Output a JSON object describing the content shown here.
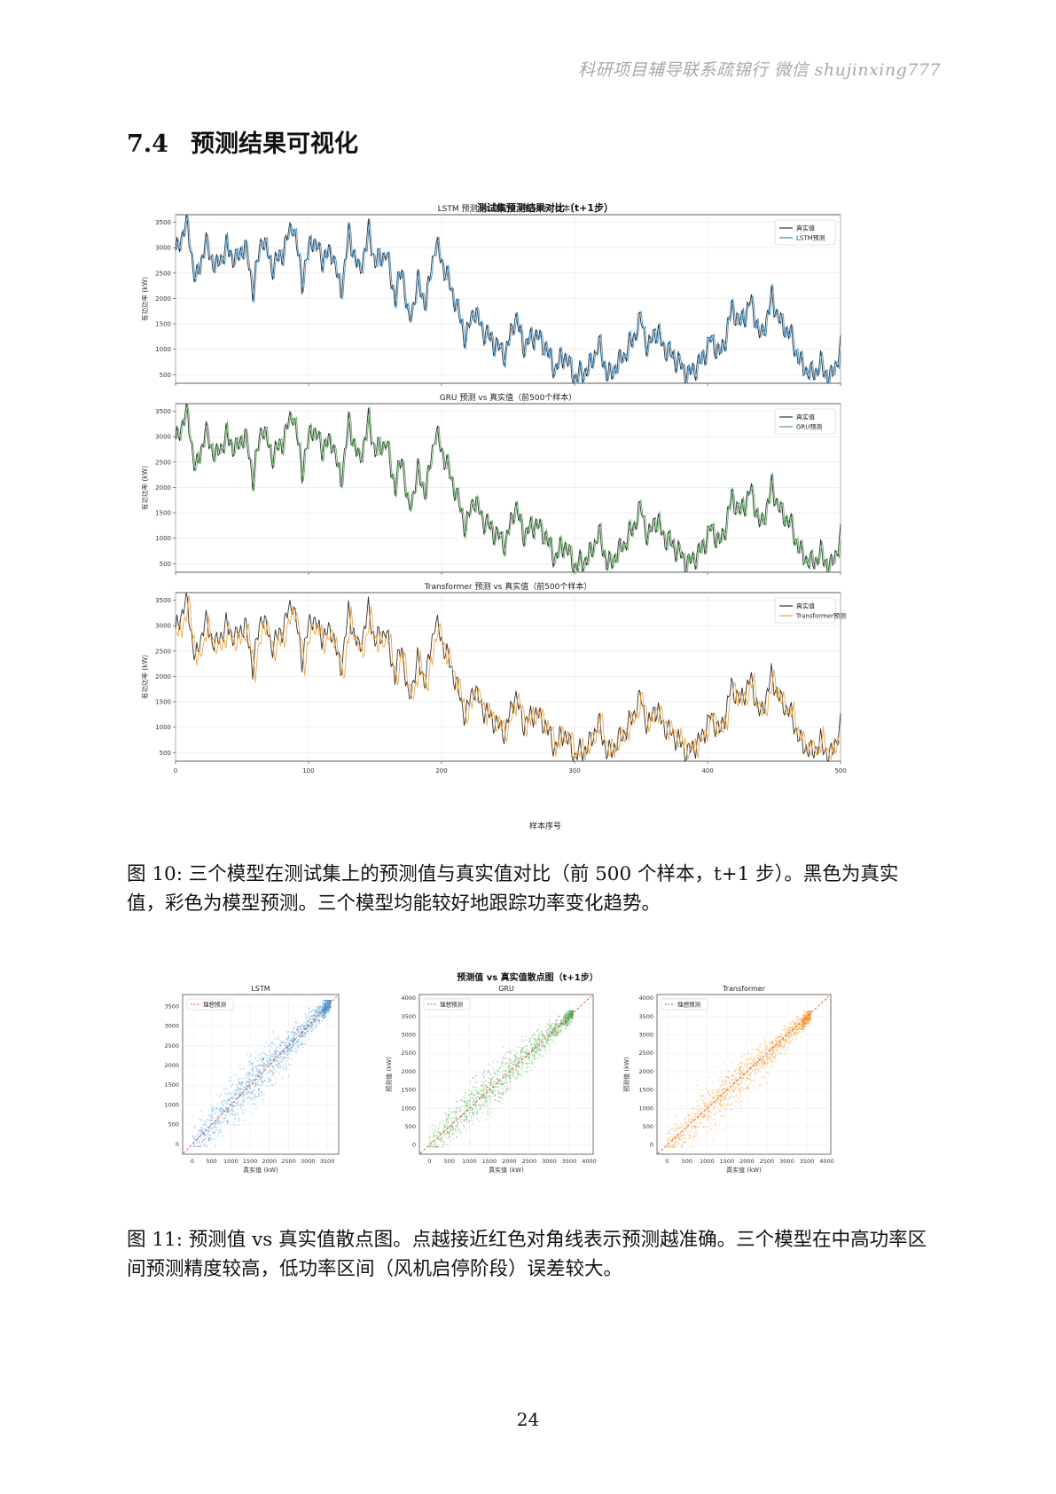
{
  "watermark": "科研项目辅导联系疏锦行 微信 shujinxing777",
  "section": {
    "number": "7.4",
    "title": "预测结果可视化"
  },
  "figure10": {
    "suptitle": "测试集预测结果对比（t+1步）",
    "xlabel": "样本序号",
    "ylabel": "有功功率 (kW)",
    "caption": "图 10: 三个模型在测试集上的预测值与真实值对比（前 500 个样本，t+1 步）。黑色为真实值，彩色为模型预测。三个模型均能较好地跟踪功率变化趋势。"
  },
  "figure11": {
    "suptitle": "预测值 vs 真实值散点图（t+1步）",
    "xlabel": "真实值 (kW)",
    "ylabel": "预测值 (kW)",
    "legend_label": "理想预测",
    "caption": "图 11: 预测值 vs 真实值散点图。点越接近红色对角线表示预测越准确。三个模型在中高功率区间预测精度较高，低功率区间（风机启停阶段）误差较大。"
  },
  "page_number": "24",
  "chart_data": [
    {
      "type": "line",
      "title": "LSTM 预测 vs 真实值（前500个样本）",
      "xlabel": "",
      "ylabel": "有功功率 (kW)",
      "xlim": [
        0,
        500
      ],
      "ylim": [
        330,
        3650
      ],
      "yticks": [
        500,
        1000,
        1500,
        2000,
        2500,
        3000,
        3500
      ],
      "xticks": [
        0,
        100,
        200,
        300,
        400,
        500
      ],
      "grid": true,
      "legend": "top-right",
      "series": [
        {
          "name": "真实值",
          "color": "#333333"
        },
        {
          "name": "LSTM预测",
          "color": "#3b8fc8"
        }
      ],
      "true_anchors": [
        [
          0,
          2850
        ],
        [
          8,
          3550
        ],
        [
          15,
          2300
        ],
        [
          22,
          3100
        ],
        [
          30,
          2600
        ],
        [
          38,
          3000
        ],
        [
          45,
          2750
        ],
        [
          52,
          3050
        ],
        [
          58,
          2200
        ],
        [
          65,
          3250
        ],
        [
          72,
          2600
        ],
        [
          80,
          2900
        ],
        [
          88,
          3500
        ],
        [
          95,
          2350
        ],
        [
          102,
          3200
        ],
        [
          110,
          2800
        ],
        [
          118,
          2900
        ],
        [
          124,
          2100
        ],
        [
          130,
          3250
        ],
        [
          138,
          2500
        ],
        [
          145,
          3300
        ],
        [
          150,
          2700
        ],
        [
          158,
          2900
        ],
        [
          165,
          2000
        ],
        [
          170,
          2650
        ],
        [
          175,
          1500
        ],
        [
          182,
          2300
        ],
        [
          188,
          1900
        ],
        [
          195,
          3100
        ],
        [
          203,
          2500
        ],
        [
          210,
          1950
        ],
        [
          218,
          1200
        ],
        [
          224,
          1800
        ],
        [
          230,
          1400
        ],
        [
          240,
          1100
        ],
        [
          248,
          900
        ],
        [
          255,
          1650
        ],
        [
          262,
          1050
        ],
        [
          270,
          1300
        ],
        [
          278,
          1050
        ],
        [
          285,
          600
        ],
        [
          292,
          900
        ],
        [
          300,
          450
        ],
        [
          310,
          600
        ],
        [
          318,
          1100
        ],
        [
          325,
          450
        ],
        [
          332,
          700
        ],
        [
          340,
          1000
        ],
        [
          350,
          1600
        ],
        [
          355,
          950
        ],
        [
          360,
          1400
        ],
        [
          368,
          1000
        ],
        [
          376,
          800
        ],
        [
          385,
          500
        ],
        [
          395,
          750
        ],
        [
          402,
          1200
        ],
        [
          410,
          900
        ],
        [
          418,
          1800
        ],
        [
          425,
          1500
        ],
        [
          432,
          1950
        ],
        [
          440,
          1200
        ],
        [
          448,
          2000
        ],
        [
          455,
          1500
        ],
        [
          462,
          1300
        ],
        [
          470,
          700
        ],
        [
          478,
          500
        ],
        [
          485,
          700
        ],
        [
          492,
          400
        ],
        [
          500,
          1000
        ]
      ],
      "pred_offset": {
        "lag": 1,
        "bias": 1.0
      }
    },
    {
      "type": "line",
      "title": "GRU 预测 vs 真实值（前500个样本）",
      "xlabel": "",
      "ylabel": "有功功率 (kW)",
      "xlim": [
        0,
        500
      ],
      "ylim": [
        330,
        3650
      ],
      "yticks": [
        500,
        1000,
        1500,
        2000,
        2500,
        3000,
        3500
      ],
      "xticks": [
        0,
        100,
        200,
        300,
        400,
        500
      ],
      "grid": true,
      "legend": "top-right",
      "series": [
        {
          "name": "真实值",
          "color": "#333333"
        },
        {
          "name": "GRU预测",
          "color": "#5aaa5a"
        }
      ],
      "pred_offset": {
        "lag": 1,
        "bias": 1.0
      }
    },
    {
      "type": "line",
      "title": "Transformer 预测 vs 真实值（前500个样本）",
      "xlabel": "样本序号",
      "ylabel": "有功功率 (kW)",
      "xlim": [
        0,
        500
      ],
      "ylim": [
        330,
        3650
      ],
      "yticks": [
        500,
        1000,
        1500,
        2000,
        2500,
        3000,
        3500
      ],
      "xticks": [
        0,
        100,
        200,
        300,
        400,
        500
      ],
      "grid": true,
      "legend": "top-right",
      "series": [
        {
          "name": "真实值",
          "color": "#333333"
        },
        {
          "name": "Transformer预测",
          "color": "#f2a13a"
        }
      ],
      "pred_offset": {
        "lag": 2,
        "bias": 0.94
      }
    },
    {
      "type": "scatter",
      "title": "LSTM",
      "xlabel": "真实值 (kW)",
      "ylabel": "预测值 (kW)",
      "xlim": [
        -250,
        3800
      ],
      "ylim": [
        -250,
        3800
      ],
      "xticks": [
        0,
        500,
        1000,
        1500,
        2000,
        2500,
        3000,
        3500
      ],
      "yticks": [
        0,
        500,
        1000,
        1500,
        2000,
        2500,
        3000,
        3500
      ],
      "color": "#3b8fd8",
      "legend": "top-left",
      "grid": true,
      "ideal_line": {
        "name": "理想预测",
        "color": "#e0542a"
      }
    },
    {
      "type": "scatter",
      "title": "GRU",
      "xlabel": "真实值 (kW)",
      "ylabel": "预测值 (kW)",
      "xlim": [
        -250,
        4100
      ],
      "ylim": [
        -250,
        4100
      ],
      "xticks": [
        0,
        500,
        1000,
        1500,
        2000,
        2500,
        3000,
        3500,
        4000
      ],
      "yticks": [
        0,
        500,
        1000,
        1500,
        2000,
        2500,
        3000,
        3500,
        4000
      ],
      "color": "#4fa84f",
      "legend": "top-left",
      "grid": true,
      "ideal_line": {
        "name": "理想预测",
        "color": "#e0542a"
      }
    },
    {
      "type": "scatter",
      "title": "Transformer",
      "xlabel": "真实值 (kW)",
      "ylabel": "预测值 (kW)",
      "xlim": [
        -250,
        4100
      ],
      "ylim": [
        -250,
        4100
      ],
      "xticks": [
        0,
        500,
        1000,
        1500,
        2000,
        2500,
        3000,
        3500,
        4000
      ],
      "yticks": [
        0,
        500,
        1000,
        1500,
        2000,
        2500,
        3000,
        3500,
        4000
      ],
      "color": "#f39a26",
      "legend": "top-left",
      "grid": true,
      "ideal_line": {
        "name": "理想预测",
        "color": "#e0542a"
      }
    }
  ]
}
